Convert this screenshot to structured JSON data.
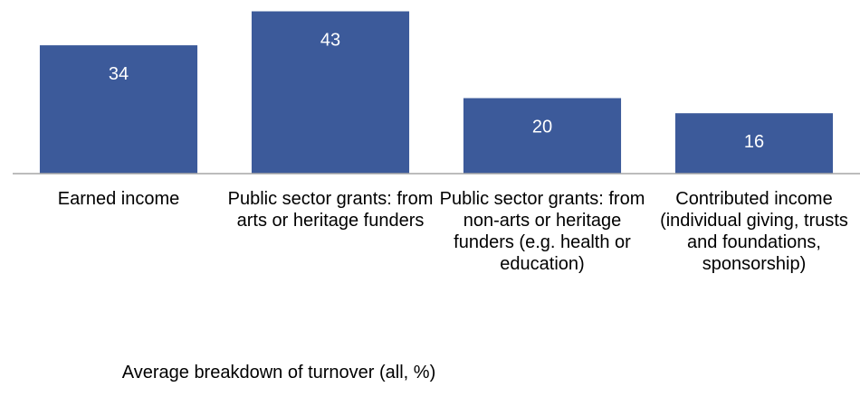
{
  "chart_data": {
    "type": "bar",
    "title": "Average breakdown of turnover (all, %)",
    "categories": [
      "Earned income",
      "Public sector grants: from arts or heritage funders",
      "Public sector grants: from non-arts or heritage funders (e.g. health or education)",
      "Contributed income (individual giving, trusts and foundations, sponsorship)"
    ],
    "values": [
      34,
      43,
      20,
      16
    ],
    "color": "#3c5a9a",
    "ylim": [
      0,
      46
    ]
  }
}
